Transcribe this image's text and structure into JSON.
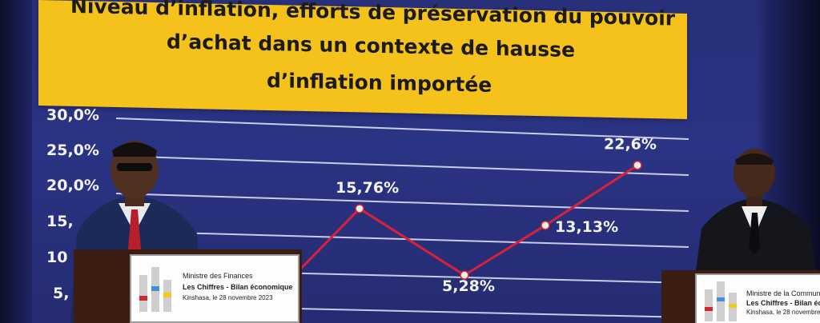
{
  "title": {
    "line1": "Niveau d’inflation, efforts de préservation du pouvoir",
    "line2": "d’achat dans un contexte de hausse",
    "line3": "d’inflation importée"
  },
  "chart_data": {
    "type": "line",
    "y_tick_labels": [
      "30,0%",
      "25,0%",
      "20,0%",
      "15,",
      "10",
      "5,"
    ],
    "series": [
      {
        "points": [
          {
            "y": 15.76,
            "label": "15,76%"
          },
          {
            "y": 5.28,
            "label": "5,28%"
          },
          {
            "y": 13.13,
            "label": "13,13%"
          },
          {
            "y": 22.6,
            "label": "22,6%"
          }
        ]
      }
    ],
    "ylim": [
      0,
      30
    ],
    "grid": true,
    "line_color": "#d8223a"
  },
  "podium_left": {
    "ministry": "Ministre des Finances",
    "subtitle": "Les Chiffres - Bilan économique",
    "location_date": "Kinshasa, le 28 novembre 2023"
  },
  "podium_right": {
    "ministry": "Ministre de la Commun",
    "subtitle": "Les Chiffres - Bilan éc",
    "location_date": "Kinshasa, le 28 novembre 2"
  }
}
